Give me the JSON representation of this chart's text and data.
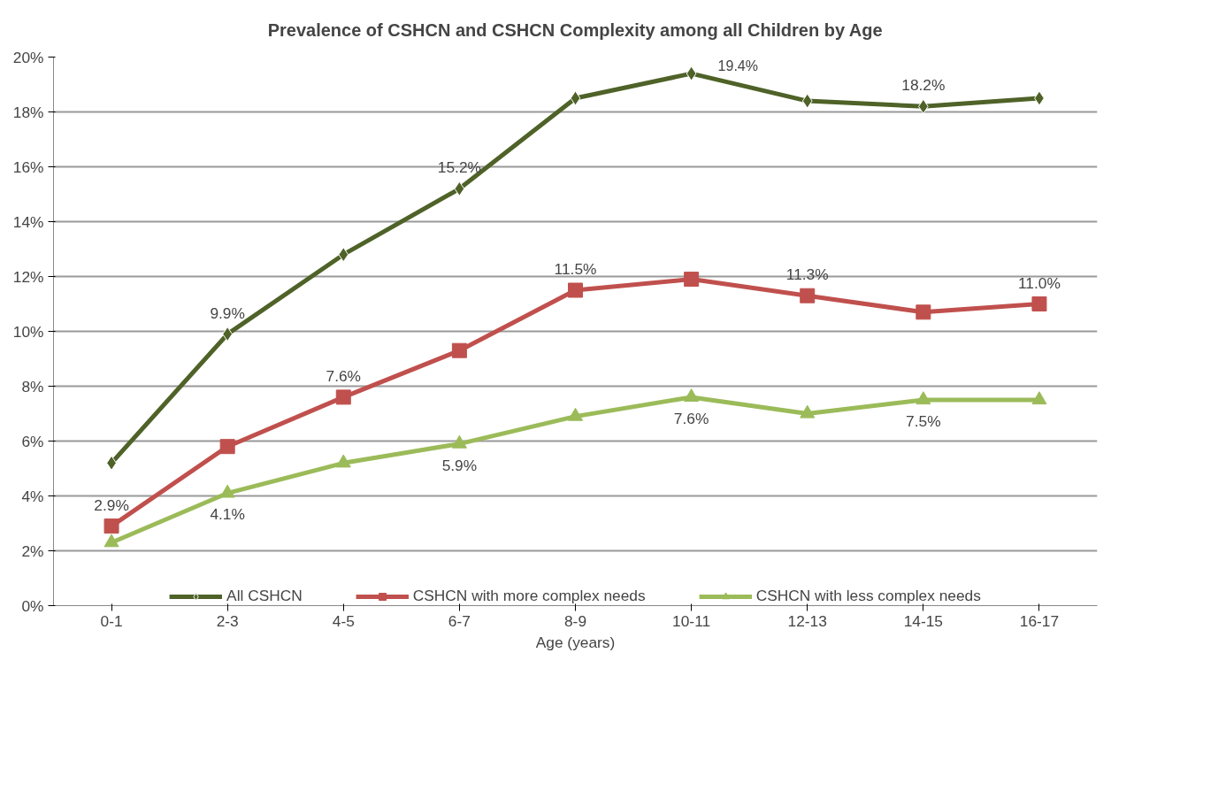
{
  "chart_data": {
    "type": "line",
    "title": "Prevalence of CSHCN and CSHCN Complexity among all Children by Age",
    "xlabel": "Age (years)",
    "categories": [
      "0-1",
      "2-3",
      "4-5",
      "6-7",
      "8-9",
      "10-11",
      "12-13",
      "14-15",
      "16-17"
    ],
    "ylim": [
      0,
      20
    ],
    "yticks": [
      {
        "value": 0,
        "label": "0%"
      },
      {
        "value": 2,
        "label": "2%"
      },
      {
        "value": 4,
        "label": "4%"
      },
      {
        "value": 6,
        "label": "6%"
      },
      {
        "value": 8,
        "label": "8%"
      },
      {
        "value": 10,
        "label": "10%"
      },
      {
        "value": 12,
        "label": "12%"
      },
      {
        "value": 14,
        "label": "14%"
      },
      {
        "value": 16,
        "label": "16%"
      },
      {
        "value": 18,
        "label": "18%"
      },
      {
        "value": 20,
        "label": "20%"
      }
    ],
    "grid": "y",
    "legend": "bottom",
    "series": [
      {
        "name": "All CSHCN",
        "color": "#4f6228",
        "marker": "diamond",
        "values": [
          5.2,
          9.9,
          12.8,
          15.2,
          18.5,
          19.4,
          18.4,
          18.2,
          18.5
        ],
        "value_labels": [
          null,
          "9.9%",
          null,
          "15.2%",
          null,
          "19.4%",
          null,
          "18.2%",
          null
        ]
      },
      {
        "name": "CSHCN with more complex needs",
        "color": "#c0504d",
        "marker": "square",
        "values": [
          2.9,
          5.8,
          7.6,
          9.3,
          11.5,
          11.9,
          11.3,
          10.7,
          11.0
        ],
        "value_labels": [
          "2.9%",
          null,
          "7.6%",
          null,
          "11.5%",
          null,
          "11.3%",
          null,
          "11.0%"
        ]
      },
      {
        "name": "CSHCN with less complex needs",
        "color": "#9bbb59",
        "marker": "triangle",
        "values": [
          2.3,
          4.1,
          5.2,
          5.9,
          6.9,
          7.6,
          7.0,
          7.5,
          7.5
        ],
        "value_labels": [
          null,
          "4.1%",
          null,
          "5.9%",
          null,
          "7.6%",
          null,
          "7.5%",
          null
        ]
      }
    ]
  }
}
